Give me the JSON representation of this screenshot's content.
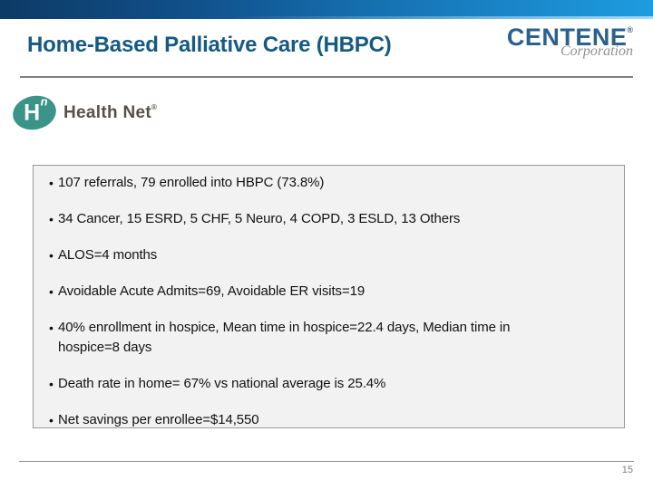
{
  "slide": {
    "title": "Home-Based Palliative Care (HBPC)",
    "page_number": "15"
  },
  "logos": {
    "centene": {
      "wordmark": "CENTENE",
      "registered_mark": "®",
      "subtitle": "Corporation"
    },
    "health_net": {
      "monogram": "H",
      "monogram_superscript": "n",
      "wordmark": "Health Net",
      "registered_mark": "®"
    }
  },
  "content_box": {
    "bullet_char": "•",
    "bullets": [
      {
        "text": "107 referrals, 79 enrolled into HBPC (73.8%)"
      },
      {
        "text": "34 Cancer, 15 ESRD, 5 CHF, 5 Neuro, 4 COPD, 3 ESLD, 13 Others"
      },
      {
        "text": "ALOS=4 months"
      },
      {
        "text": "Avoidable Acute Admits=69, Avoidable ER visits=19"
      },
      {
        "text": "40% enrollment in hospice, Mean time in hospice=22.4 days, Median time in hospice=8 days"
      },
      {
        "text": "Death rate in home= 67% vs national average is 25.4%"
      },
      {
        "text": "Net savings per enrollee=$14,550"
      }
    ]
  },
  "colors": {
    "top_bar_gradient_start": "#0d3a66",
    "top_bar_gradient_end": "#1e9ce0",
    "title_blue": "#155a82",
    "centene_blue": "#2a618f",
    "corporation_gray": "#909090",
    "health_net_teal": "#3b9488",
    "health_net_text": "#57504a",
    "box_border": "#999999",
    "box_fill": "#f2f2f2",
    "rule_gray": "#7f7f7f",
    "page_number_gray": "#808080"
  }
}
